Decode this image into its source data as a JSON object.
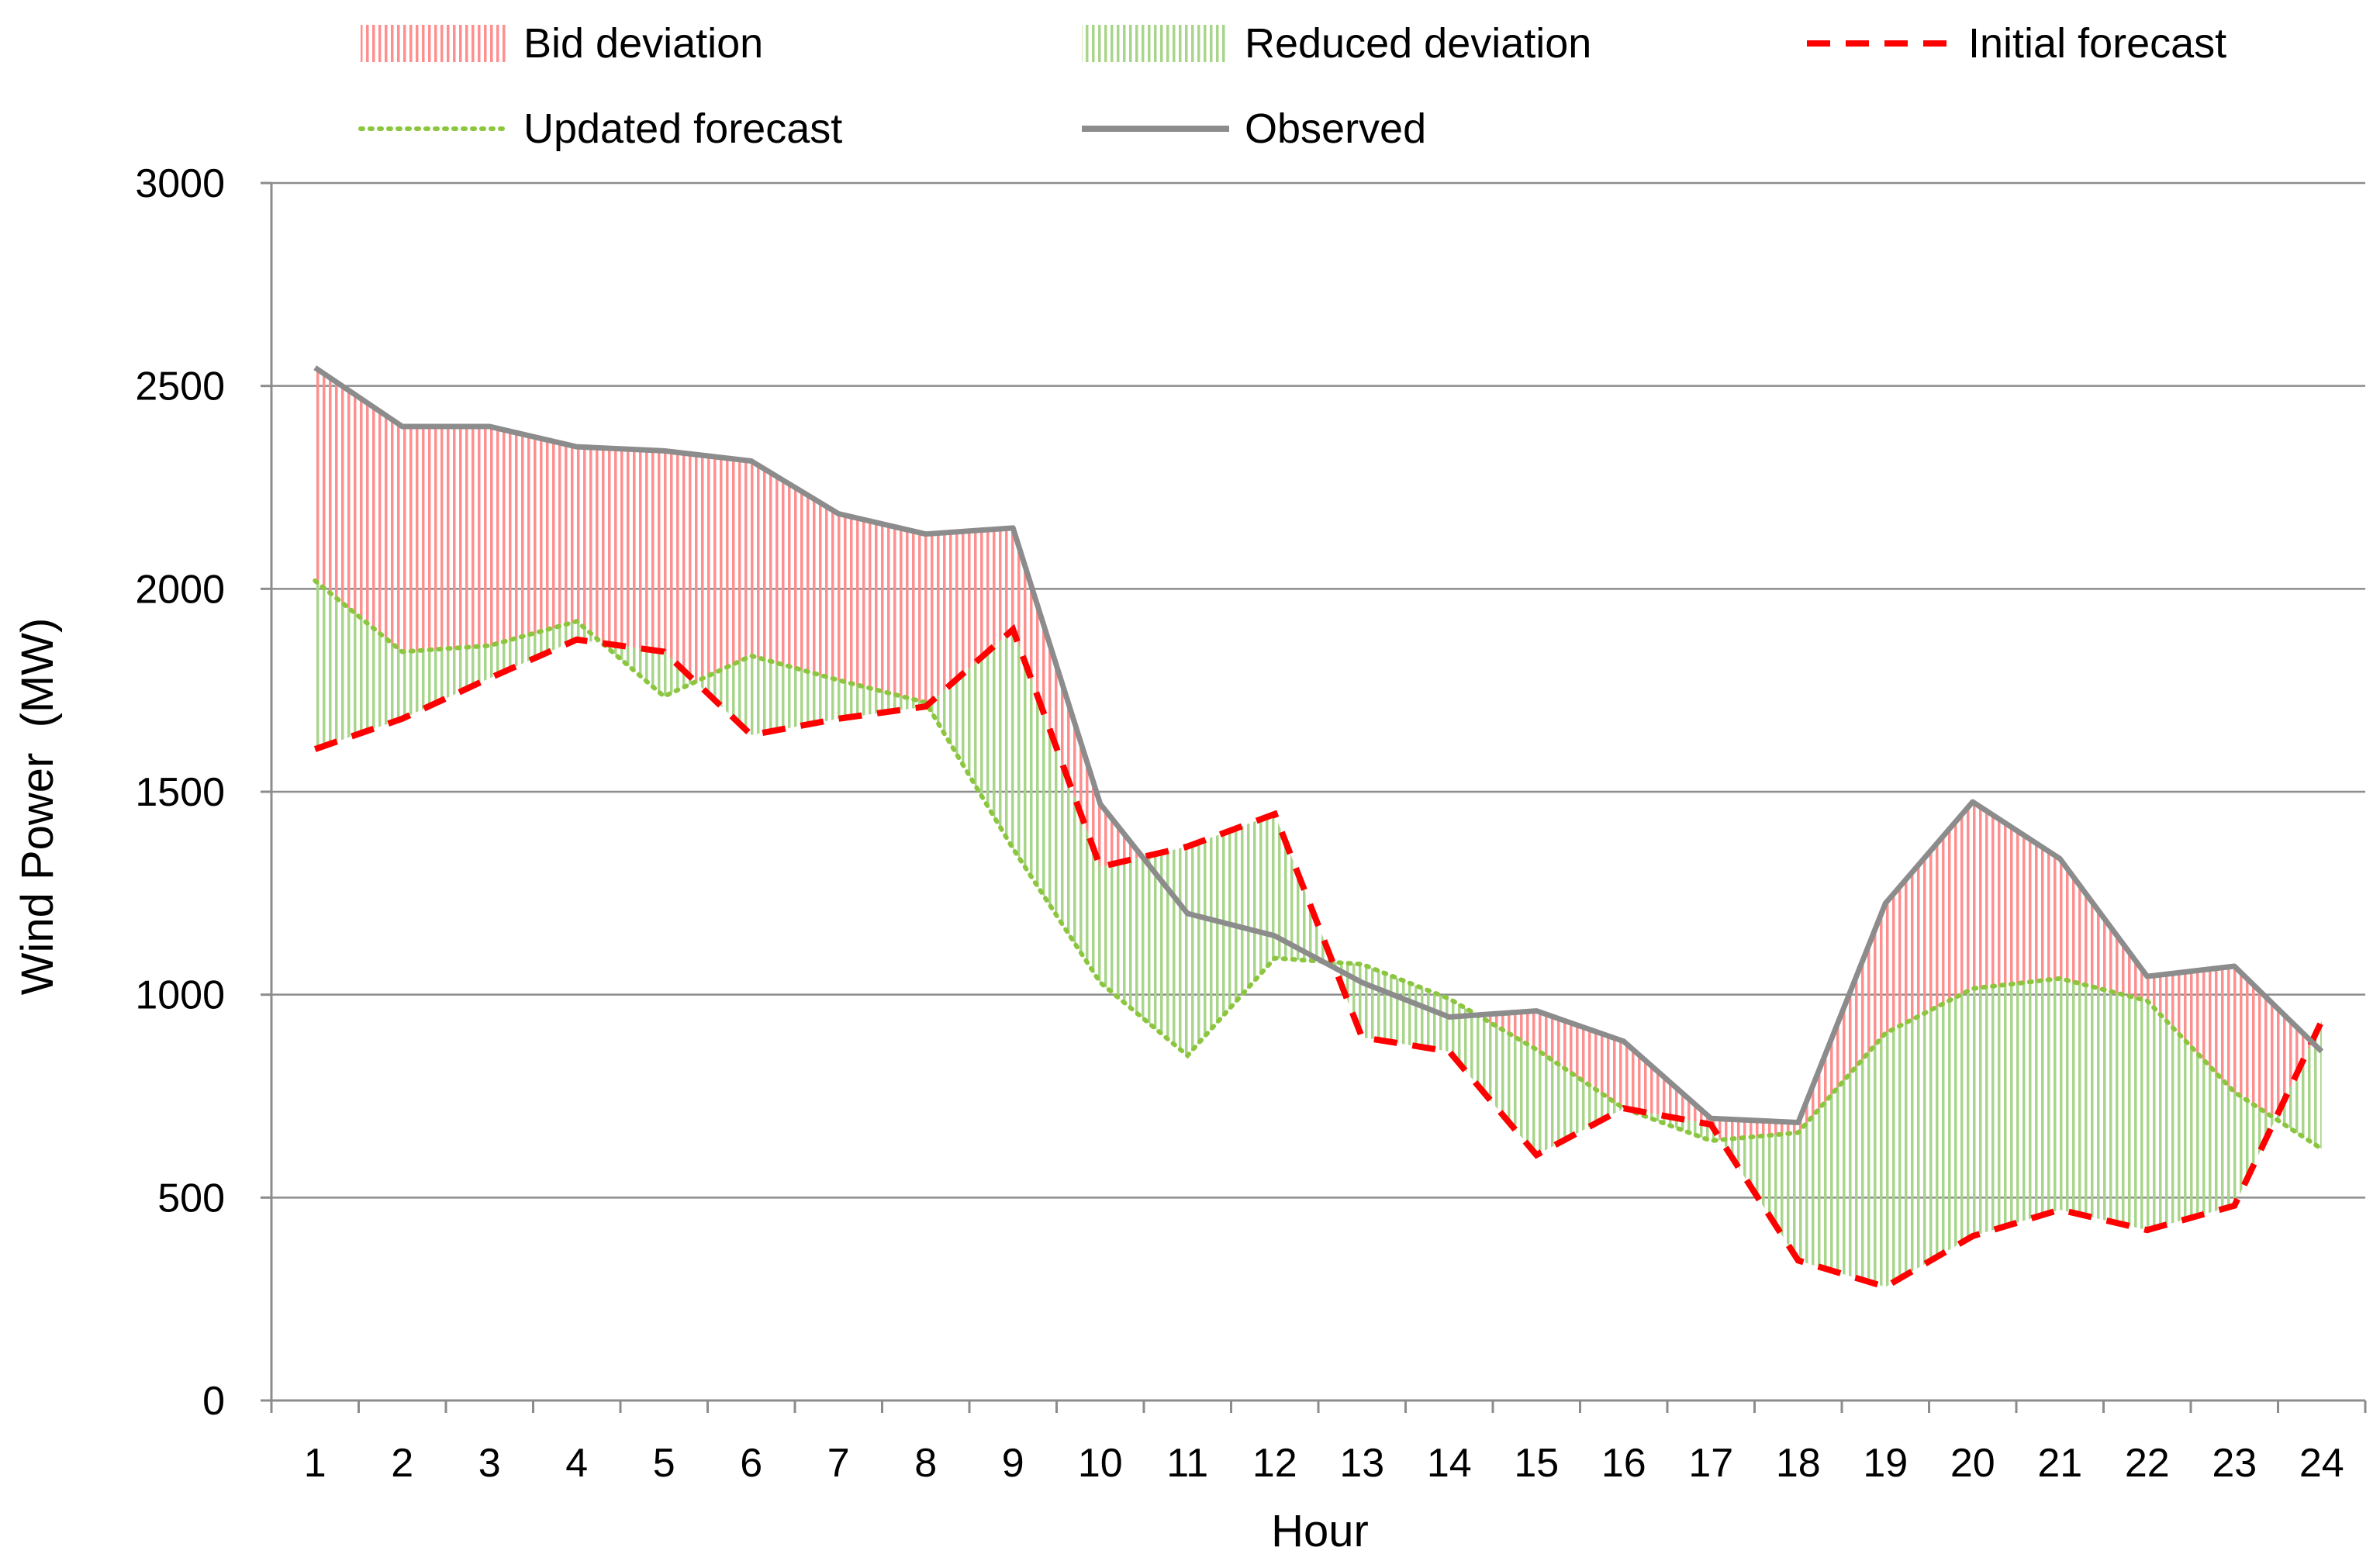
{
  "chart_data": {
    "type": "line",
    "title": "",
    "xlabel": "Hour",
    "ylabel": "Wind Power  (MW)",
    "ylim": [
      0,
      3000
    ],
    "yticks": [
      0,
      500,
      1000,
      1500,
      2000,
      2500,
      3000
    ],
    "ytick_labels": [
      "0",
      "500",
      "1000",
      "1500",
      "2000",
      "2500",
      "3000"
    ],
    "x": [
      1,
      2,
      3,
      4,
      5,
      6,
      7,
      8,
      9,
      10,
      11,
      12,
      13,
      14,
      15,
      16,
      17,
      18,
      19,
      20,
      21,
      22,
      23,
      24
    ],
    "categories": [
      "1",
      "2",
      "3",
      "4",
      "5",
      "6",
      "7",
      "8",
      "9",
      "10",
      "11",
      "12",
      "13",
      "14",
      "15",
      "16",
      "17",
      "18",
      "19",
      "20",
      "21",
      "22",
      "23",
      "24"
    ],
    "grid": true,
    "legend_position": "top",
    "series": [
      {
        "name": "Initial forecast",
        "style": "dashed",
        "color": "#ff0000",
        "values": [
          1605,
          1680,
          1780,
          1875,
          1845,
          1640,
          1680,
          1710,
          1900,
          1315,
          1365,
          1445,
          895,
          860,
          605,
          720,
          680,
          345,
          280,
          405,
          470,
          420,
          480,
          935
        ]
      },
      {
        "name": "Updated forecast",
        "style": "dotted",
        "color": "#8cc63f",
        "values": [
          2020,
          1845,
          1860,
          1920,
          1735,
          1835,
          1775,
          1720,
          1360,
          1030,
          850,
          1090,
          1075,
          990,
          865,
          720,
          640,
          660,
          905,
          1015,
          1040,
          985,
          760,
          620
        ]
      },
      {
        "name": "Observed",
        "style": "solid",
        "color": "#8c8c8c",
        "values": [
          2545,
          2400,
          2400,
          2350,
          2340,
          2315,
          2185,
          2135,
          2150,
          1470,
          1200,
          1145,
          1030,
          945,
          960,
          885,
          695,
          685,
          1225,
          1475,
          1335,
          1045,
          1070,
          860
        ]
      }
    ],
    "areas": [
      {
        "name": "Bid deviation",
        "between": [
          "Initial forecast",
          "Observed"
        ],
        "color": "#ff9e9e"
      },
      {
        "name": "Reduced deviation",
        "between": [
          "Initial forecast",
          "Updated forecast"
        ],
        "color": "#b5dc9a"
      }
    ],
    "legend": [
      {
        "label": "Bid deviation",
        "kind": "area",
        "color": "#ff9e9e"
      },
      {
        "label": "Reduced deviation",
        "kind": "area",
        "color": "#b5dc9a"
      },
      {
        "label": "Initial forecast",
        "kind": "dashed",
        "color": "#ff0000"
      },
      {
        "label": "Updated forecast",
        "kind": "dotted",
        "color": "#8cc63f"
      },
      {
        "label": "Observed",
        "kind": "solid",
        "color": "#8c8c8c"
      }
    ]
  }
}
